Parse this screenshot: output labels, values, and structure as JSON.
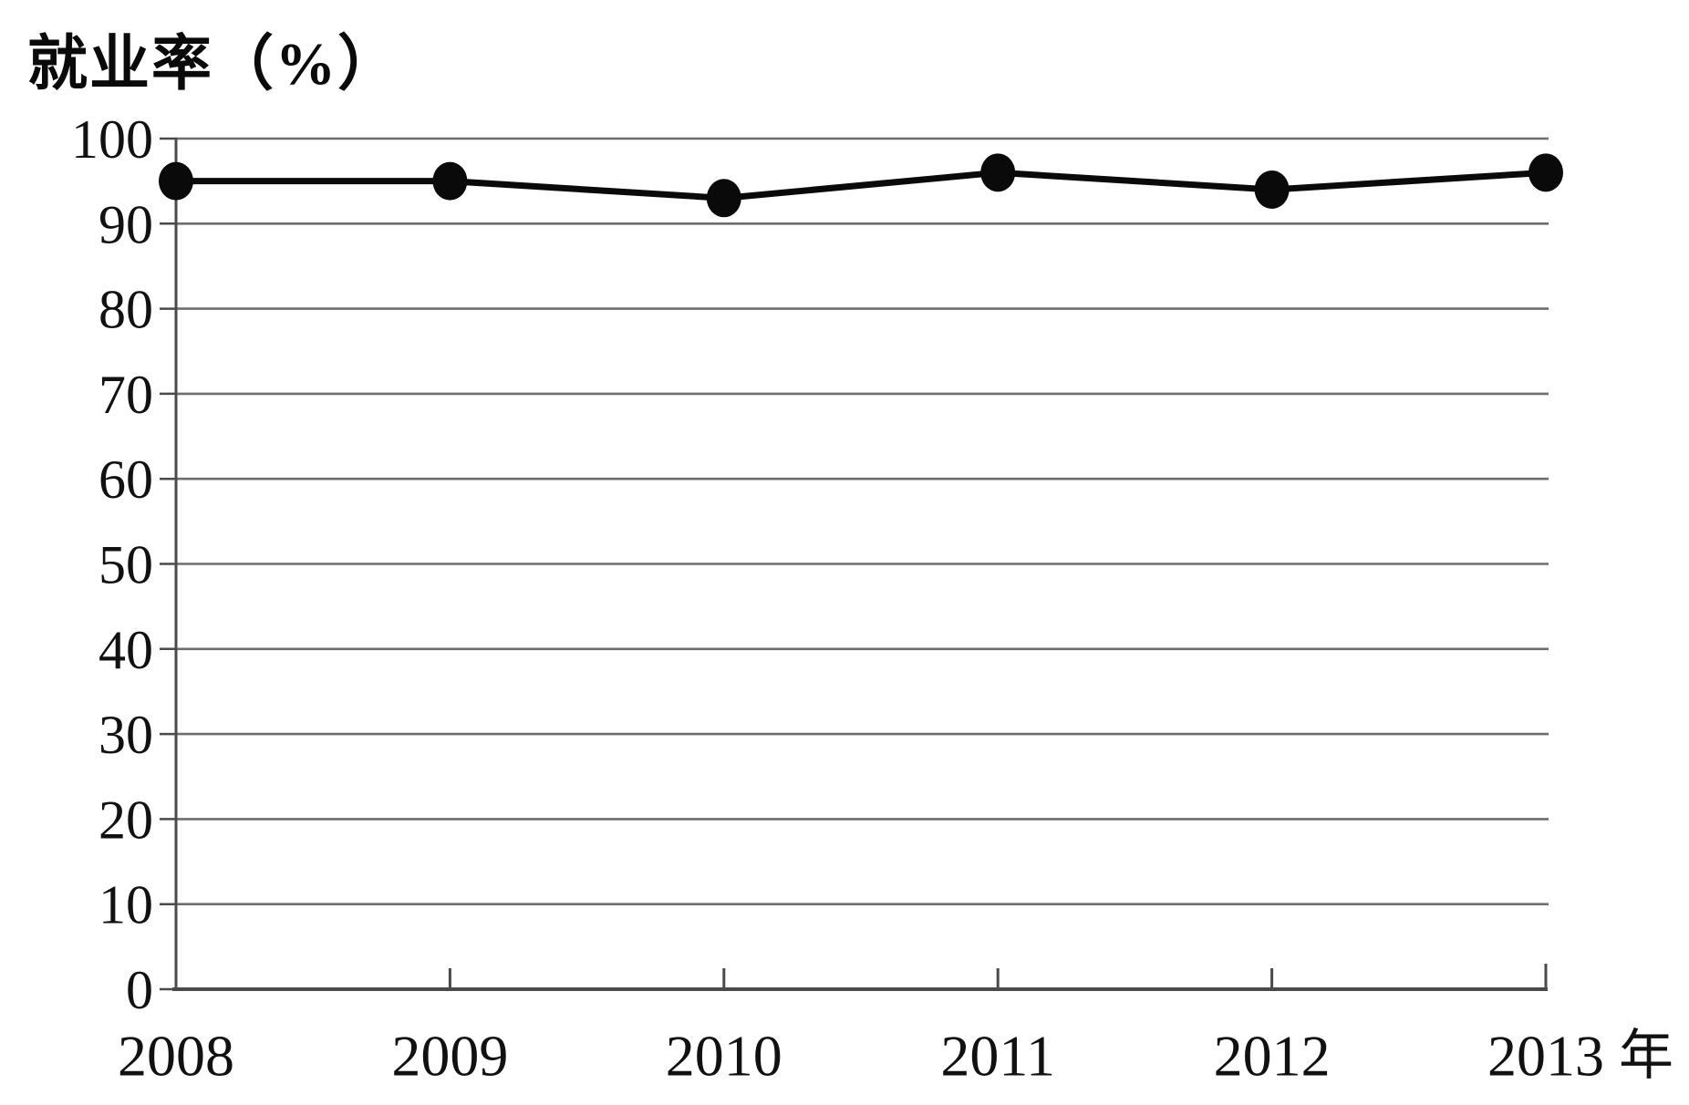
{
  "chart_data": {
    "type": "line",
    "title": "就业率（%）",
    "xlabel_unit": "年",
    "categories": [
      "2008",
      "2009",
      "2010",
      "2011",
      "2012",
      "2013"
    ],
    "series": [
      {
        "name": "就业率",
        "values": [
          95,
          95,
          93,
          96,
          94,
          96
        ]
      }
    ],
    "ylim": [
      0,
      100
    ],
    "ytick_step": 10,
    "ytick_labels": [
      "0",
      "10",
      "20",
      "30",
      "40",
      "50",
      "60",
      "70",
      "80",
      "90",
      "100"
    ],
    "grid": true,
    "legend": "none",
    "marker": "filled-circle",
    "line_color": "#0a0a0a",
    "grid_color": "#6e6e6e",
    "axis_color": "#4a4a4a",
    "text_color": "#111111",
    "background": "#ffffff"
  }
}
